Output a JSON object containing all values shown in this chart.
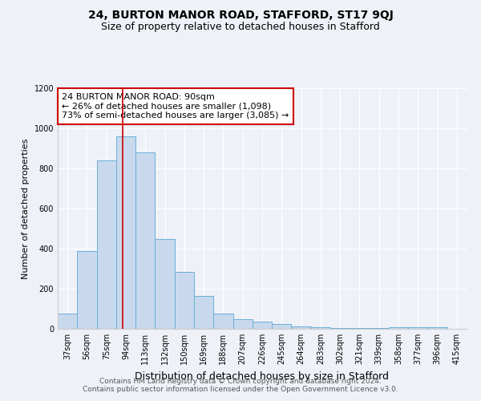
{
  "title": "24, BURTON MANOR ROAD, STAFFORD, ST17 9QJ",
  "subtitle": "Size of property relative to detached houses in Stafford",
  "xlabel": "Distribution of detached houses by size in Stafford",
  "ylabel": "Number of detached properties",
  "bar_color": "#c8d9ee",
  "bar_edge_color": "#6baed6",
  "categories": [
    "37sqm",
    "56sqm",
    "75sqm",
    "94sqm",
    "113sqm",
    "132sqm",
    "150sqm",
    "169sqm",
    "188sqm",
    "207sqm",
    "226sqm",
    "245sqm",
    "264sqm",
    "283sqm",
    "302sqm",
    "321sqm",
    "339sqm",
    "358sqm",
    "377sqm",
    "396sqm",
    "415sqm"
  ],
  "values": [
    75,
    390,
    840,
    960,
    880,
    450,
    285,
    165,
    75,
    50,
    35,
    25,
    12,
    8,
    5,
    5,
    5,
    10,
    10,
    10,
    0
  ],
  "red_line_x": 2.84,
  "annotation_line1": "24 BURTON MANOR ROAD: 90sqm",
  "annotation_line2": "← 26% of detached houses are smaller (1,098)",
  "annotation_line3": "73% of semi-detached houses are larger (3,085) →",
  "annotation_box_facecolor": "#ffffff",
  "annotation_box_edgecolor": "#cc0000",
  "ylim": [
    0,
    1200
  ],
  "yticks": [
    0,
    200,
    400,
    600,
    800,
    1000,
    1200
  ],
  "footer_text": "Contains HM Land Registry data © Crown copyright and database right 2024.\nContains public sector information licensed under the Open Government Licence v3.0.",
  "background_color": "#eef2f8",
  "grid_color": "#ffffff",
  "title_fontsize": 10,
  "subtitle_fontsize": 9,
  "xlabel_fontsize": 9,
  "ylabel_fontsize": 8,
  "tick_fontsize": 7,
  "annotation_fontsize": 8,
  "footer_fontsize": 6.5
}
